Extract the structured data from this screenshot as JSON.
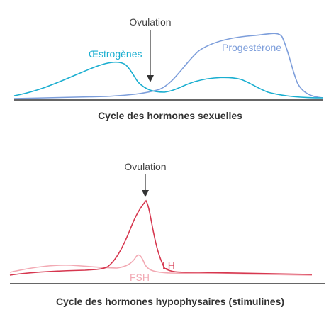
{
  "top_panel": {
    "ovulation_label": "Ovulation",
    "estrogen_label": "Œstrogènes",
    "progesterone_label": "Progestérone",
    "caption": "Cycle des hormones sexuelles",
    "colors": {
      "estrogen": "#1aaed0",
      "progesterone": "#7d9edb",
      "axis": "#333333",
      "arrow": "#333333"
    }
  },
  "bottom_panel": {
    "ovulation_label": "Ovulation",
    "lh_label": "LH",
    "fsh_label": "FSH",
    "caption": "Cycle des hormones hypophysaires (stimulines)",
    "colors": {
      "lh": "#d6374f",
      "fsh": "#f2a9b3",
      "axis": "#333333",
      "arrow": "#333333"
    }
  }
}
